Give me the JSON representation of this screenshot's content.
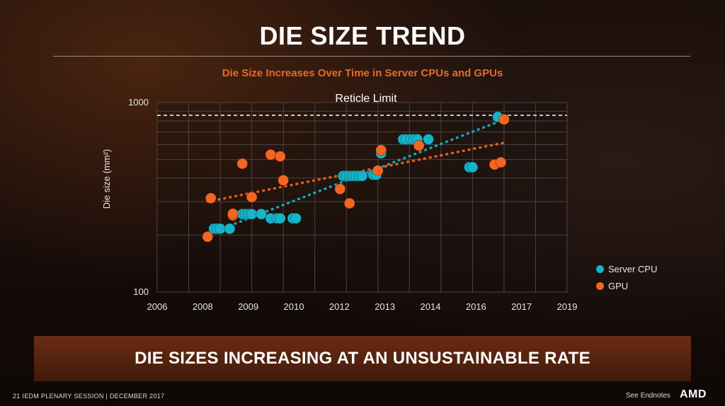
{
  "slide": {
    "title": "DIE SIZE TREND",
    "subtitle": "Die Size Increases Over Time in Server CPUs and GPUs",
    "banner": "DIE SIZES INCREASING AT AN UNSUSTAINABLE RATE",
    "footer_left": "21   IEDM PLENARY SESSION  |  DECEMBER 2017",
    "footer_right": "See Endnotes",
    "logo": "AMD"
  },
  "chart_data": {
    "type": "scatter",
    "title": "Die Size Increases Over Time in Server CPUs and GPUs",
    "xlabel": "",
    "ylabel": "Die size (mm²)",
    "xlim": [
      2006,
      2019
    ],
    "ylim": [
      100,
      1000
    ],
    "y_scale": "log",
    "x_ticks": [
      "2006",
      "2008",
      "2009",
      "2010",
      "2012",
      "2013",
      "2014",
      "2016",
      "2017",
      "2019"
    ],
    "y_ticks": [
      "100",
      "1000"
    ],
    "grid": true,
    "legend_position": "right",
    "reference_line": {
      "label": "Reticle Limit",
      "y": 830,
      "style": "dashed"
    },
    "colors": {
      "Server CPU": "#17b3c8",
      "GPU": "#f26522"
    },
    "series": [
      {
        "name": "Server CPU",
        "trendline": true,
        "points": [
          [
            2007.8,
            216
          ],
          [
            2007.9,
            216
          ],
          [
            2008.0,
            216
          ],
          [
            2008.3,
            216
          ],
          [
            2008.7,
            258
          ],
          [
            2008.8,
            258
          ],
          [
            2008.9,
            258
          ],
          [
            2009.0,
            258
          ],
          [
            2009.3,
            258
          ],
          [
            2009.6,
            245
          ],
          [
            2009.8,
            245
          ],
          [
            2009.9,
            245
          ],
          [
            2010.3,
            245
          ],
          [
            2010.4,
            245
          ],
          [
            2011.9,
            410
          ],
          [
            2012.0,
            410
          ],
          [
            2012.1,
            410
          ],
          [
            2012.2,
            410
          ],
          [
            2012.3,
            410
          ],
          [
            2012.4,
            410
          ],
          [
            2012.5,
            410
          ],
          [
            2012.85,
            416
          ],
          [
            2012.95,
            416
          ],
          [
            2013.1,
            540
          ],
          [
            2013.8,
            640
          ],
          [
            2013.9,
            640
          ],
          [
            2014.05,
            640
          ],
          [
            2014.15,
            640
          ],
          [
            2014.25,
            640
          ],
          [
            2014.6,
            640
          ],
          [
            2015.9,
            456
          ],
          [
            2016.0,
            456
          ],
          [
            2016.8,
            840
          ]
        ]
      },
      {
        "name": "GPU",
        "trendline": true,
        "points": [
          [
            2007.6,
            196
          ],
          [
            2007.7,
            313
          ],
          [
            2008.4,
            254
          ],
          [
            2008.4,
            259
          ],
          [
            2008.7,
            476
          ],
          [
            2009.0,
            317
          ],
          [
            2009.6,
            531
          ],
          [
            2009.9,
            520
          ],
          [
            2010.0,
            389
          ],
          [
            2011.8,
            350
          ],
          [
            2012.1,
            294
          ],
          [
            2013.0,
            438
          ],
          [
            2013.1,
            561
          ],
          [
            2014.3,
            593
          ],
          [
            2016.7,
            471
          ],
          [
            2016.9,
            484
          ],
          [
            2017.0,
            815
          ]
        ]
      }
    ]
  }
}
